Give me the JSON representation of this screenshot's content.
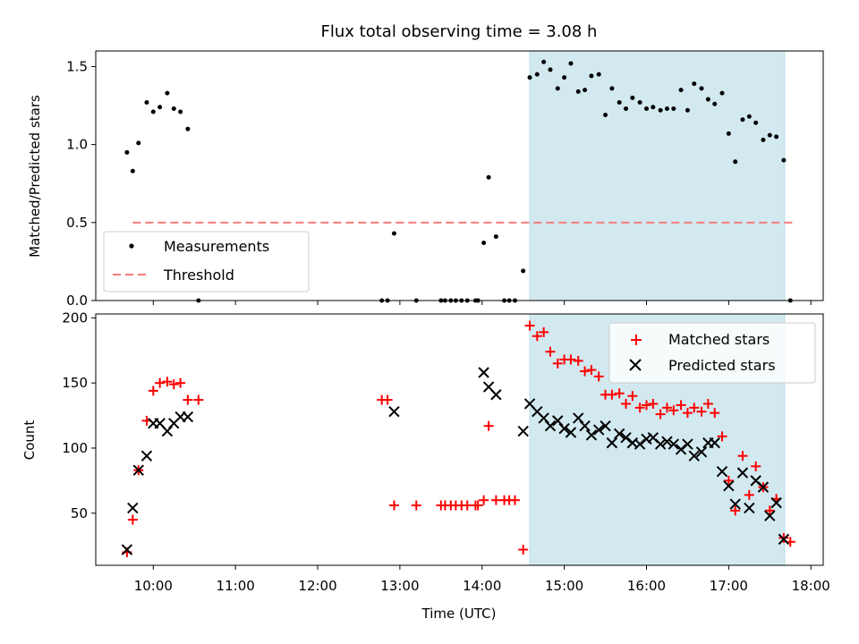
{
  "title": "Flux total observing time = 3.08 h",
  "x_axis": {
    "label": "Time (UTC)",
    "range": [
      9.3,
      18.15
    ],
    "ticks": [
      10,
      11,
      12,
      13,
      14,
      15,
      16,
      17,
      18
    ],
    "tick_labels": [
      "10:00",
      "11:00",
      "12:00",
      "13:00",
      "14:00",
      "15:00",
      "16:00",
      "17:00",
      "18:00"
    ]
  },
  "highlight": {
    "start": 14.58,
    "end": 17.68,
    "color": "#d2e9f0"
  },
  "chart_data": [
    {
      "type": "scatter",
      "ylabel": "Matched/Predicted stars",
      "ylim": [
        0,
        1.6
      ],
      "yticks": [
        0.0,
        0.5,
        1.0,
        1.5
      ],
      "ytick_labels": [
        "0.0",
        "0.5",
        "1.0",
        "1.5"
      ],
      "threshold": {
        "name": "Threshold",
        "value": 0.5,
        "x_range": [
          9.75,
          17.78
        ],
        "color": "#f47c7c"
      },
      "series": [
        {
          "name": "Measurements",
          "color": "#000000",
          "x": [
            9.68,
            9.75,
            9.82,
            9.92,
            10.0,
            10.08,
            10.17,
            10.25,
            10.33,
            10.42,
            10.55,
            12.78,
            12.85,
            12.93,
            13.2,
            13.5,
            13.55,
            13.62,
            13.68,
            13.75,
            13.82,
            13.92,
            13.95,
            14.02,
            14.08,
            14.17,
            14.27,
            14.33,
            14.4,
            14.5,
            14.58,
            14.67,
            14.75,
            14.83,
            14.92,
            15.0,
            15.08,
            15.17,
            15.25,
            15.33,
            15.42,
            15.5,
            15.58,
            15.67,
            15.75,
            15.83,
            15.92,
            16.0,
            16.08,
            16.17,
            16.25,
            16.33,
            16.42,
            16.5,
            16.58,
            16.67,
            16.75,
            16.83,
            16.92,
            17.0,
            17.08,
            17.17,
            17.25,
            17.33,
            17.42,
            17.5,
            17.58,
            17.67,
            17.75
          ],
          "y": [
            0.95,
            0.83,
            1.01,
            1.27,
            1.21,
            1.24,
            1.33,
            1.23,
            1.21,
            1.1,
            0.0,
            0.0,
            0.0,
            0.43,
            0.0,
            0.0,
            0.0,
            0.0,
            0.0,
            0.0,
            0.0,
            0.0,
            0.0,
            0.37,
            0.79,
            0.41,
            0.0,
            0.0,
            0.0,
            0.19,
            1.43,
            1.45,
            1.53,
            1.48,
            1.36,
            1.43,
            1.52,
            1.34,
            1.35,
            1.44,
            1.45,
            1.19,
            1.36,
            1.27,
            1.23,
            1.3,
            1.27,
            1.23,
            1.24,
            1.22,
            1.23,
            1.23,
            1.35,
            1.22,
            1.39,
            1.36,
            1.29,
            1.26,
            1.33,
            1.07,
            0.89,
            1.16,
            1.18,
            1.14,
            1.03,
            1.06,
            1.05,
            0.9,
            0.0
          ]
        }
      ],
      "legend": {
        "position": "lower-left",
        "entries": [
          "Measurements",
          "Threshold"
        ]
      }
    },
    {
      "type": "scatter",
      "ylabel": "Count",
      "ylim": [
        10,
        203
      ],
      "yticks": [
        50,
        100,
        150,
        200
      ],
      "ytick_labels": [
        "50",
        "100",
        "150",
        "200"
      ],
      "series": [
        {
          "name": "Matched stars",
          "marker": "+",
          "color": "#ff0000",
          "x": [
            9.68,
            9.75,
            9.82,
            9.92,
            10.0,
            10.08,
            10.17,
            10.25,
            10.33,
            10.42,
            10.55,
            12.78,
            12.85,
            12.93,
            13.2,
            13.5,
            13.55,
            13.62,
            13.68,
            13.75,
            13.82,
            13.92,
            13.95,
            14.02,
            14.08,
            14.17,
            14.27,
            14.33,
            14.4,
            14.5,
            14.58,
            14.67,
            14.75,
            14.83,
            14.92,
            15.0,
            15.08,
            15.17,
            15.25,
            15.33,
            15.42,
            15.5,
            15.58,
            15.67,
            15.75,
            15.83,
            15.92,
            16.0,
            16.08,
            16.17,
            16.25,
            16.33,
            16.42,
            16.5,
            16.58,
            16.67,
            16.75,
            16.83,
            16.92,
            17.0,
            17.08,
            17.17,
            17.25,
            17.33,
            17.42,
            17.5,
            17.58,
            17.67,
            17.75
          ],
          "y": [
            20,
            45,
            83,
            121,
            144,
            150,
            151,
            149,
            150,
            137,
            137,
            137,
            137,
            56,
            56,
            56,
            56,
            56,
            56,
            56,
            56,
            56,
            56,
            60,
            117,
            60,
            60,
            60,
            60,
            22,
            194,
            186,
            189,
            174,
            165,
            168,
            168,
            167,
            159,
            160,
            155,
            141,
            141,
            142,
            134,
            140,
            131,
            133,
            134,
            126,
            131,
            129,
            133,
            127,
            131,
            128,
            134,
            127,
            109,
            75,
            52,
            94,
            64,
            86,
            70,
            52,
            61,
            31,
            28
          ]
        },
        {
          "name": "Predicted stars",
          "marker": "x",
          "color": "#000000",
          "x": [
            9.68,
            9.75,
            9.82,
            9.92,
            10.0,
            10.08,
            10.17,
            10.25,
            10.33,
            10.42,
            12.93,
            14.02,
            14.08,
            14.17,
            14.5,
            14.58,
            14.67,
            14.75,
            14.83,
            14.92,
            15.0,
            15.08,
            15.17,
            15.25,
            15.33,
            15.42,
            15.5,
            15.58,
            15.67,
            15.75,
            15.83,
            15.92,
            16.0,
            16.08,
            16.17,
            16.25,
            16.33,
            16.42,
            16.5,
            16.58,
            16.67,
            16.75,
            16.83,
            16.92,
            17.0,
            17.08,
            17.17,
            17.25,
            17.33,
            17.42,
            17.5,
            17.58,
            17.67
          ],
          "y": [
            22,
            54,
            83,
            94,
            119,
            119,
            113,
            119,
            124,
            124,
            128,
            158,
            147,
            141,
            113,
            134,
            128,
            123,
            117,
            121,
            115,
            112,
            123,
            117,
            110,
            114,
            117,
            104,
            111,
            108,
            104,
            103,
            107,
            108,
            103,
            105,
            103,
            99,
            103,
            94,
            97,
            104,
            104,
            82,
            71,
            57,
            81,
            54,
            75,
            70,
            48,
            58,
            30
          ]
        }
      ],
      "legend": {
        "position": "upper-right",
        "entries": [
          "Matched stars",
          "Predicted stars"
        ]
      }
    }
  ]
}
